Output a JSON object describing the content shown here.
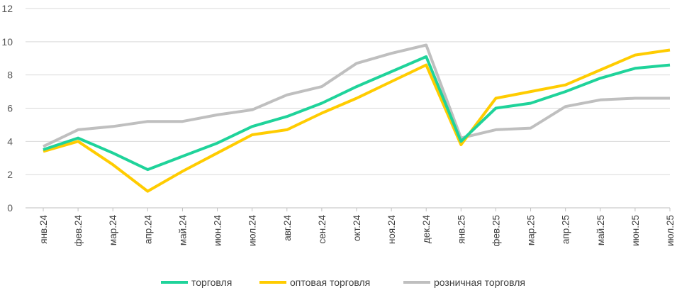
{
  "chart_data": {
    "type": "line",
    "title": "",
    "xlabel": "",
    "ylabel": "",
    "ylim": [
      0,
      12
    ],
    "yticks": [
      0,
      2,
      4,
      6,
      8,
      10,
      12
    ],
    "grid": true,
    "legend_position": "bottom",
    "categories": [
      "янв.24",
      "фев.24",
      "мар.24",
      "апр.24",
      "май.24",
      "июн.24",
      "июл.24",
      "авг.24",
      "сен.24",
      "окт.24",
      "ноя.24",
      "дек.24",
      "янв.25",
      "фев.25",
      "мар.25",
      "апр.25",
      "май.25",
      "июн.25",
      "июл.25"
    ],
    "series": [
      {
        "name": "торговля",
        "color": "#1fd39a",
        "values": [
          3.5,
          4.2,
          3.3,
          2.3,
          3.1,
          3.9,
          4.9,
          5.5,
          6.3,
          7.3,
          8.2,
          9.1,
          4.0,
          6.0,
          6.3,
          7.0,
          7.8,
          8.4,
          8.6
        ]
      },
      {
        "name": "оптовая торговля",
        "color": "#ffcc00",
        "values": [
          3.4,
          4.0,
          2.6,
          1.0,
          2.2,
          3.3,
          4.4,
          4.7,
          5.7,
          6.6,
          7.6,
          8.6,
          3.8,
          6.6,
          7.0,
          7.4,
          8.3,
          9.2,
          9.5
        ]
      },
      {
        "name": "розничная торговля",
        "color": "#bfbfbf",
        "values": [
          3.7,
          4.7,
          4.9,
          5.2,
          5.2,
          5.6,
          5.9,
          6.8,
          7.3,
          8.7,
          9.3,
          9.8,
          4.2,
          4.7,
          4.8,
          6.1,
          6.5,
          6.6,
          6.6
        ]
      }
    ]
  }
}
